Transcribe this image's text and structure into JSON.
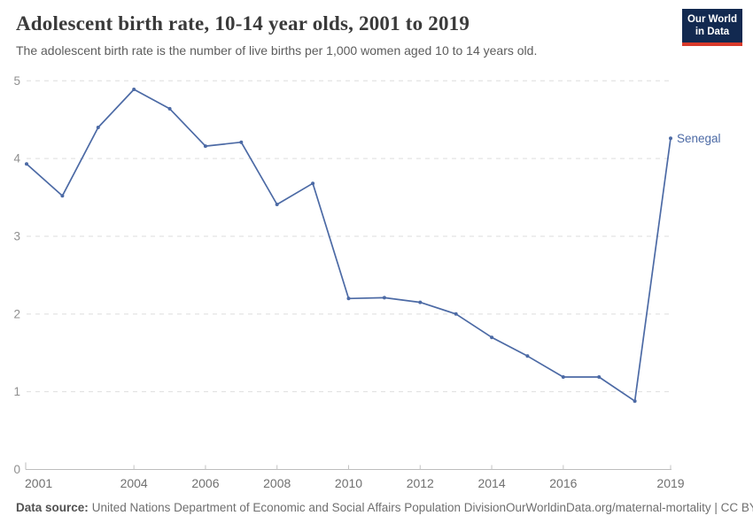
{
  "header": {
    "title": "Adolescent birth rate, 10-14 year olds, 2001 to 2019",
    "subtitle": "The adolescent birth rate is the number of live births per 1,000 women aged 10 to 14 years old."
  },
  "logo": {
    "line1": "Our World",
    "line2": "in Data",
    "bg_color": "#122950",
    "bar_color": "#d93a2b"
  },
  "chart_data": {
    "type": "line",
    "title": "Adolescent birth rate, 10-14 year olds, 2001 to 2019",
    "xlabel": "",
    "ylabel": "",
    "x": [
      2001,
      2002,
      2003,
      2004,
      2005,
      2006,
      2007,
      2008,
      2009,
      2010,
      2011,
      2012,
      2013,
      2014,
      2015,
      2016,
      2017,
      2018,
      2019
    ],
    "series": [
      {
        "name": "Senegal",
        "color": "#4c6aa5",
        "values": [
          3.93,
          3.52,
          4.4,
          4.89,
          4.64,
          4.16,
          4.21,
          3.41,
          3.68,
          2.2,
          2.21,
          2.15,
          2.0,
          1.7,
          1.46,
          1.19,
          1.19,
          0.88,
          4.26
        ]
      }
    ],
    "xlim": [
      2001,
      2019
    ],
    "ylim": [
      0,
      5
    ],
    "xticks": [
      2001,
      2004,
      2006,
      2008,
      2010,
      2012,
      2014,
      2016,
      2019
    ],
    "yticks": [
      0,
      1,
      2,
      3,
      4,
      5
    ],
    "grid": "horizontal-dashed",
    "legend_position": "end-of-line-label",
    "entity_label": "Senegal"
  },
  "footer": {
    "source_label": "Data source:",
    "source_text": "United Nations Department of Economic and Social Affairs Population Division",
    "link_text": "OurWorldinData.org/maternal-mortality | CC BY"
  }
}
